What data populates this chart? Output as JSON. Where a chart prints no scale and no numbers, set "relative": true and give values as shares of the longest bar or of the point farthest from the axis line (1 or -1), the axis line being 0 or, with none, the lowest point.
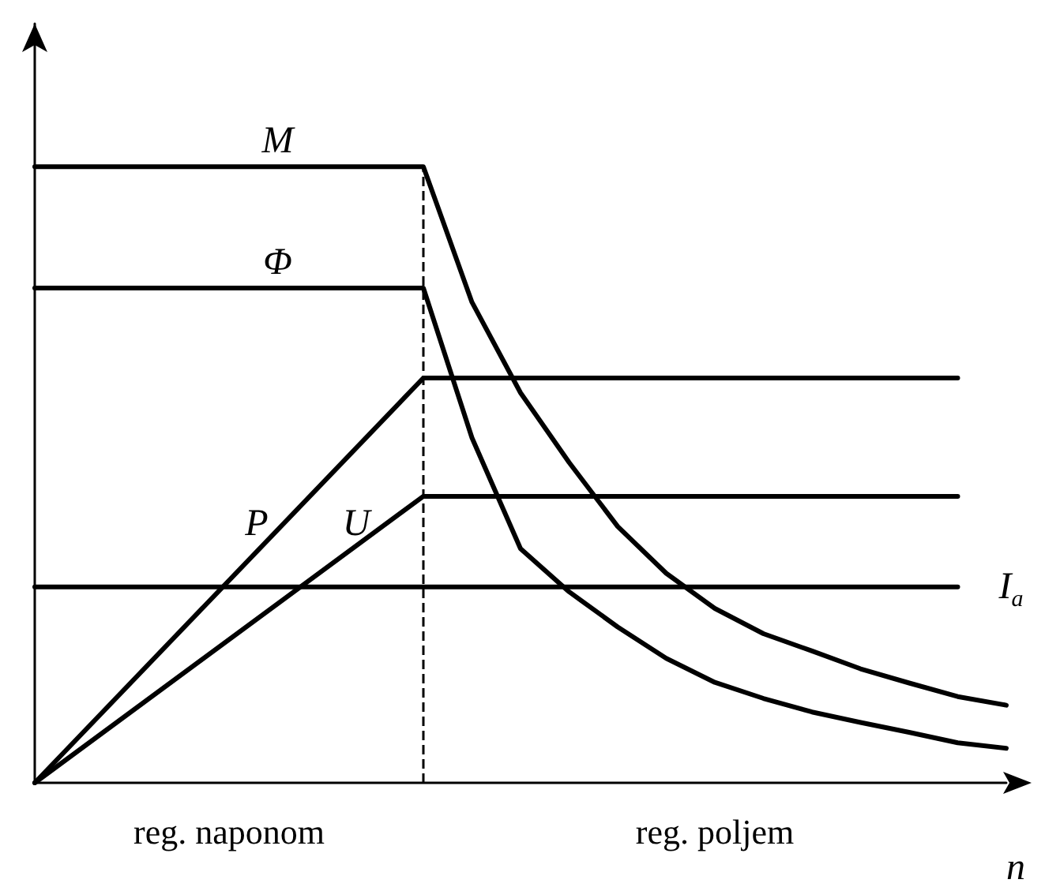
{
  "chart_data": {
    "type": "line",
    "relative": true,
    "xlabel": "n",
    "grid": false,
    "legend": false,
    "marker": "none",
    "line_style": "solid",
    "categories": [
      null,
      null,
      null,
      null,
      null,
      null,
      null,
      null,
      null,
      null,
      null,
      null,
      null,
      null,
      null,
      null,
      null,
      null,
      null,
      null,
      null
    ],
    "series": [
      {
        "name": "M",
        "color": "#000000",
        "values": [
          1,
          null,
          null,
          null,
          null,
          null,
          null,
          null,
          1,
          0.78,
          0.633,
          0.52,
          0.416,
          0.34,
          0.283,
          0.242,
          0.214,
          0.185,
          0.162,
          0.14,
          0.126
        ]
      },
      {
        "name": "Φ",
        "color": "#000000",
        "values": [
          0.803,
          null,
          null,
          null,
          null,
          null,
          null,
          null,
          0.803,
          0.56,
          0.38,
          0.31,
          0.253,
          0.202,
          0.163,
          0.137,
          0.115,
          0.098,
          0.082,
          0.065,
          0.056
        ]
      },
      {
        "name": "P",
        "color": "#000000",
        "values": [
          0,
          null,
          null,
          null,
          null,
          null,
          null,
          null,
          0.657,
          null,
          null,
          null,
          null,
          null,
          null,
          null,
          null,
          null,
          null,
          0.657,
          null
        ]
      },
      {
        "name": "U",
        "color": "#000000",
        "values": [
          0,
          null,
          null,
          null,
          null,
          null,
          null,
          null,
          0.465,
          null,
          null,
          null,
          null,
          null,
          null,
          null,
          null,
          null,
          null,
          0.465,
          null
        ]
      },
      {
        "name": "I$_{a}$",
        "color": "#000000",
        "values": [
          0.318,
          null,
          null,
          null,
          null,
          null,
          null,
          null,
          null,
          null,
          null,
          null,
          null,
          null,
          null,
          null,
          null,
          null,
          null,
          0.318,
          null
        ]
      }
    ],
    "annotations": [
      "reg. naponom",
      "reg. poljem"
    ]
  }
}
